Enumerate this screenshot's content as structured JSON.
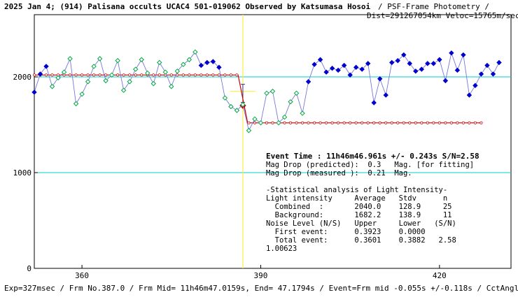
{
  "header": {
    "title": "2025 Jan 4; (914) Palisana occults UCAC4 501-019062 Observed by Katsumasa Hosoi",
    "method": "/ PSF-Frame Photometry /",
    "dist": "Dist=291267054km Veloc=15765m/sec"
  },
  "footer": {
    "info": "Exp=327msec / Frm No.387.0 / Frm Mid= 11h46m47.0159s, End= 47.1794s / Event=Frm mid -0.055s +/-0.118s / CctAngle=0.0deg"
  },
  "stats": {
    "event_time": "Event Time : 11h46m46.961s  +/- 0.243s  S/N=2.58",
    "lines": [
      "Mag Drop (predicted):  0.3   Mag. [for fitting]",
      "Mag Drop (measured ):  0.21  Mag.",
      "",
      "-Statistical analysis of Light Intensity-",
      "Light intensity     Average   Stdv      n",
      "  Combined  :       2040.0    128.9     25",
      "  Background:       1682.2    138.9     11",
      "Noise Level (N/S)   Upper     Lower   (S/N)",
      "  First event:      0.3923    0.0000",
      "  Total event:      0.3601    0.3882   2.58",
      "1.00623"
    ]
  },
  "chart_data": {
    "type": "scatter",
    "xlim": [
      352,
      432
    ],
    "ylim": [
      0,
      2650
    ],
    "x_ticks": [
      360,
      390,
      420
    ],
    "y_ticks": [
      0,
      1000,
      2000
    ],
    "hlines_cyan": [
      2000,
      1000
    ],
    "event_x": 387.0,
    "colors": {
      "blue": "#0000cc",
      "green": "#00aa44",
      "blue_line": "#7777dd",
      "red": "#cc0000",
      "cyan": "#00cccc",
      "yellow": "#ffee44"
    },
    "series": [
      {
        "x": [
          352,
          353,
          354,
          355,
          356,
          357,
          358,
          359,
          360,
          361,
          362,
          363,
          364,
          365,
          366,
          367,
          368,
          369,
          370,
          371,
          372,
          373,
          374,
          375,
          376,
          377,
          378,
          379,
          380,
          381,
          382,
          383,
          384,
          385,
          386,
          387,
          388,
          389,
          390,
          391,
          392,
          393,
          394,
          395,
          396,
          397,
          398,
          399,
          400,
          401,
          402,
          403,
          404,
          405,
          406,
          407,
          408,
          409,
          410,
          411,
          412,
          413,
          414,
          415,
          416,
          417,
          418,
          419,
          420,
          421,
          422,
          423,
          424,
          425,
          426,
          427,
          428,
          429,
          430
        ],
        "y": [
          1840,
          2030,
          2110,
          1900,
          1990,
          2050,
          2190,
          1720,
          1820,
          1950,
          2110,
          2190,
          1960,
          2020,
          2170,
          1860,
          1950,
          2080,
          2180,
          2040,
          1930,
          2150,
          2050,
          1900,
          2060,
          2130,
          2180,
          2260,
          2120,
          2150,
          2160,
          2100,
          1780,
          1690,
          1650,
          1710,
          1440,
          1560,
          1520,
          1830,
          1850,
          1520,
          1580,
          1740,
          1830,
          1620,
          1950,
          2130,
          2180,
          2050,
          2090,
          2070,
          2120,
          2020,
          2100,
          2080,
          2140,
          1730,
          1980,
          1810,
          2150,
          2170,
          2230,
          2140,
          2060,
          2080,
          2140,
          2140,
          2180,
          1960,
          2250,
          2070,
          2230,
          1810,
          1910,
          2030,
          2120,
          2030,
          2150
        ],
        "kind": [
          "b",
          "b",
          "b",
          "g",
          "g",
          "g",
          "g",
          "g",
          "g",
          "g",
          "g",
          "g",
          "g",
          "g",
          "g",
          "g",
          "g",
          "g",
          "g",
          "g",
          "g",
          "g",
          "g",
          "g",
          "g",
          "g",
          "g",
          "g",
          "b",
          "b",
          "b",
          "b",
          "g",
          "g",
          "g",
          "g",
          "g",
          "g",
          "g",
          "g",
          "g",
          "g",
          "g",
          "g",
          "g",
          "g",
          "b",
          "b",
          "b",
          "b",
          "b",
          "b",
          "b",
          "b",
          "b",
          "b",
          "b",
          "b",
          "b",
          "b",
          "b",
          "b",
          "b",
          "b",
          "b",
          "b",
          "b",
          "b",
          "b",
          "b",
          "b",
          "b",
          "b",
          "b",
          "b",
          "b",
          "b",
          "b",
          "b"
        ]
      }
    ],
    "fit_red": {
      "pre_level": 2020,
      "post_level": 1520,
      "x_start": 352,
      "x_drop_start": 386.2,
      "x_drop_end": 387.8,
      "x_end": 427
    }
  }
}
